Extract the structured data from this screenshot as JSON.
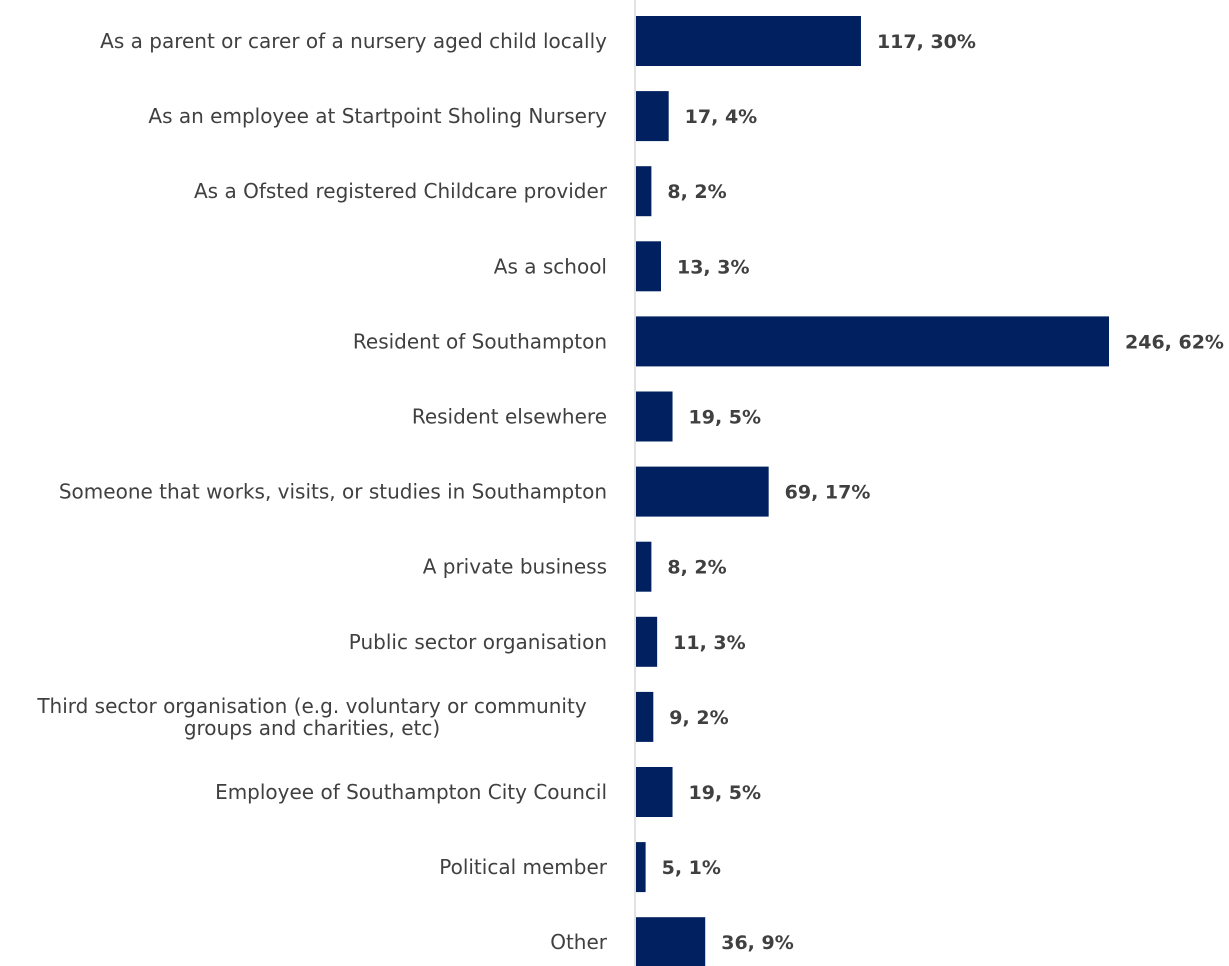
{
  "chart_data": {
    "type": "bar",
    "orientation": "horizontal",
    "title": "",
    "xlabel": "",
    "ylabel": "",
    "bar_color": "#002060",
    "categories": [
      "As a parent or carer of a nursery aged child locally",
      "As an employee at Startpoint Sholing Nursery",
      "As a Ofsted registered Childcare provider",
      "As a school",
      "Resident of Southampton",
      "Resident elsewhere",
      "Someone that works, visits, or studies in Southampton",
      "A private business",
      "Public sector organisation",
      "Third sector organisation (e.g. voluntary or community groups and charities, etc)",
      "Employee of Southampton City Council",
      "Political member",
      "Other"
    ],
    "series": [
      {
        "values": [
          117,
          17,
          8,
          13,
          246,
          19,
          69,
          8,
          11,
          9,
          19,
          5,
          36
        ],
        "percent": [
          30,
          4,
          2,
          3,
          62,
          5,
          17,
          2,
          3,
          2,
          5,
          1,
          9
        ]
      }
    ],
    "data_labels": [
      "117, 30%",
      "17, 4%",
      "8, 2%",
      "13, 3%",
      "246, 62%",
      "19, 5%",
      "69, 17%",
      "8, 2%",
      "11, 3%",
      "9, 2%",
      "19, 5%",
      "5, 1%",
      "36, 9%"
    ],
    "xlim": [
      0,
      246
    ],
    "grid": false,
    "legend": "none"
  }
}
